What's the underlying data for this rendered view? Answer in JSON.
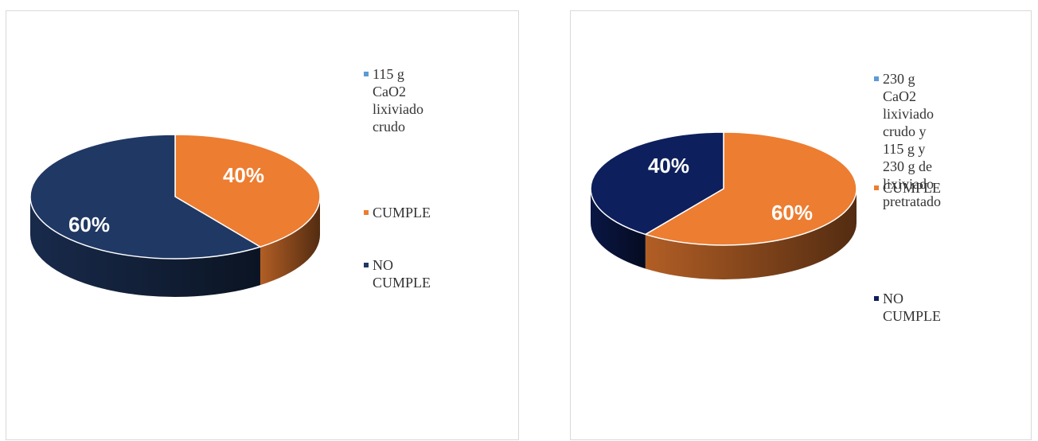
{
  "chart_data": [
    {
      "type": "pie",
      "style": "3d",
      "slices": [
        {
          "label": "CUMPLE",
          "value": 40,
          "display": "40%",
          "color": "#ED7D31"
        },
        {
          "label": "NO CUMPLE",
          "value": 60,
          "display": "60%",
          "color": "#203864"
        }
      ],
      "legend": [
        {
          "text": "115 g CaO2\nlixiviado crudo",
          "color": "#5B9BD5"
        },
        {
          "text": "CUMPLE",
          "color": "#ED7D31"
        },
        {
          "text": "NO CUMPLE",
          "color": "#203864"
        }
      ],
      "legend_position": "right"
    },
    {
      "type": "pie",
      "style": "3d",
      "slices": [
        {
          "label": "CUMPLE",
          "value": 60,
          "display": "60%",
          "color": "#ED7D31"
        },
        {
          "label": "NO CUMPLE",
          "value": 40,
          "display": "40%",
          "color": "#0D1F5C"
        }
      ],
      "legend": [
        {
          "text": "230 g CaO2\nlixiviado crudo y\n115 g y 230 g de\nlixiviado pretratado",
          "color": "#5B9BD5"
        },
        {
          "text": "CUMPLE",
          "color": "#ED7D31"
        },
        {
          "text": "NO CUMPLE",
          "color": "#0D1F5C"
        }
      ],
      "legend_position": "right"
    }
  ]
}
